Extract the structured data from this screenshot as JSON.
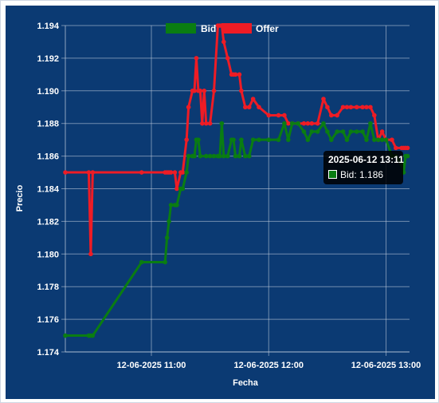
{
  "chart_data": {
    "type": "line",
    "xlabel": "Fecha",
    "ylabel": "Precio",
    "ylim": [
      1.174,
      1.194
    ],
    "yticks": [
      "1.174",
      "1.176",
      "1.178",
      "1.180",
      "1.182",
      "1.184",
      "1.186",
      "1.188",
      "1.190",
      "1.192",
      "1.194"
    ],
    "xlim": [
      "2025-06-12 10:16",
      "2025-06-12 13:12"
    ],
    "xticks": [
      {
        "label": "12-06-2025 11:00",
        "time": "2025-06-12 11:00"
      },
      {
        "label": "12-06-2025 12:00",
        "time": "2025-06-12 12:00"
      },
      {
        "label": "12-06-2025 13:00",
        "time": "2025-06-12 13:00"
      }
    ],
    "grid": true,
    "legend_position": "top-center",
    "series": [
      {
        "name": "Bid",
        "color": "#0a7d12",
        "points": [
          [
            "10:16",
            1.175
          ],
          [
            "10:28",
            1.175
          ],
          [
            "10:29",
            1.175
          ],
          [
            "10:30",
            1.175
          ],
          [
            "10:55",
            1.1795
          ],
          [
            "11:07",
            1.1795
          ],
          [
            "11:08",
            1.181
          ],
          [
            "11:09",
            1.182
          ],
          [
            "11:10",
            1.183
          ],
          [
            "11:12",
            1.183
          ],
          [
            "11:13",
            1.183
          ],
          [
            "11:15",
            1.184
          ],
          [
            "11:16",
            1.184
          ],
          [
            "11:18",
            1.185
          ],
          [
            "11:19",
            1.186
          ],
          [
            "11:21",
            1.186
          ],
          [
            "11:22",
            1.186
          ],
          [
            "11:23",
            1.187
          ],
          [
            "11:24",
            1.187
          ],
          [
            "11:25",
            1.186
          ],
          [
            "11:28",
            1.186
          ],
          [
            "11:30",
            1.186
          ],
          [
            "11:32",
            1.186
          ],
          [
            "11:34",
            1.186
          ],
          [
            "11:35",
            1.186
          ],
          [
            "11:36",
            1.188
          ],
          [
            "11:37",
            1.186
          ],
          [
            "11:39",
            1.186
          ],
          [
            "11:41",
            1.187
          ],
          [
            "11:42",
            1.187
          ],
          [
            "11:43",
            1.186
          ],
          [
            "11:45",
            1.186
          ],
          [
            "11:46",
            1.187
          ],
          [
            "11:48",
            1.186
          ],
          [
            "11:50",
            1.186
          ],
          [
            "11:52",
            1.187
          ],
          [
            "11:55",
            1.187
          ],
          [
            "12:00",
            1.187
          ],
          [
            "12:05",
            1.187
          ],
          [
            "12:08",
            1.188
          ],
          [
            "12:10",
            1.187
          ],
          [
            "12:12",
            1.188
          ],
          [
            "12:15",
            1.188
          ],
          [
            "12:18",
            1.1875
          ],
          [
            "12:20",
            1.187
          ],
          [
            "12:22",
            1.1875
          ],
          [
            "12:25",
            1.1875
          ],
          [
            "12:28",
            1.188
          ],
          [
            "12:30",
            1.1875
          ],
          [
            "12:32",
            1.187
          ],
          [
            "12:35",
            1.1875
          ],
          [
            "12:38",
            1.1875
          ],
          [
            "12:40",
            1.187
          ],
          [
            "12:42",
            1.1875
          ],
          [
            "12:45",
            1.1875
          ],
          [
            "12:48",
            1.1875
          ],
          [
            "12:50",
            1.187
          ],
          [
            "12:52",
            1.188
          ],
          [
            "12:54",
            1.187
          ],
          [
            "12:56",
            1.187
          ],
          [
            "12:58",
            1.187
          ],
          [
            "13:00",
            1.187
          ],
          [
            "13:03",
            1.186
          ],
          [
            "13:05",
            1.186
          ],
          [
            "13:08",
            1.1855
          ],
          [
            "13:09",
            1.185
          ],
          [
            "13:10",
            1.186
          ],
          [
            "13:11",
            1.186
          ]
        ]
      },
      {
        "name": "Offer",
        "color": "#ee1c25",
        "points": [
          [
            "10:16",
            1.185
          ],
          [
            "10:28",
            1.185
          ],
          [
            "10:29",
            1.18
          ],
          [
            "10:30",
            1.185
          ],
          [
            "10:55",
            1.185
          ],
          [
            "11:07",
            1.185
          ],
          [
            "11:08",
            1.185
          ],
          [
            "11:09",
            1.185
          ],
          [
            "11:10",
            1.185
          ],
          [
            "11:12",
            1.185
          ],
          [
            "11:13",
            1.184
          ],
          [
            "11:15",
            1.185
          ],
          [
            "11:16",
            1.185
          ],
          [
            "11:18",
            1.187
          ],
          [
            "11:19",
            1.189
          ],
          [
            "11:21",
            1.19
          ],
          [
            "11:22",
            1.19
          ],
          [
            "11:23",
            1.192
          ],
          [
            "11:24",
            1.19
          ],
          [
            "11:25",
            1.19
          ],
          [
            "11:26",
            1.188
          ],
          [
            "11:27",
            1.19
          ],
          [
            "11:28",
            1.188
          ],
          [
            "11:30",
            1.188
          ],
          [
            "11:32",
            1.19
          ],
          [
            "11:34",
            1.194
          ],
          [
            "11:35",
            1.194
          ],
          [
            "11:36",
            1.194
          ],
          [
            "11:37",
            1.193
          ],
          [
            "11:39",
            1.192
          ],
          [
            "11:41",
            1.191
          ],
          [
            "11:42",
            1.191
          ],
          [
            "11:43",
            1.191
          ],
          [
            "11:45",
            1.191
          ],
          [
            "11:46",
            1.19
          ],
          [
            "11:48",
            1.189
          ],
          [
            "11:50",
            1.189
          ],
          [
            "11:52",
            1.1895
          ],
          [
            "11:55",
            1.189
          ],
          [
            "12:00",
            1.1885
          ],
          [
            "12:05",
            1.1885
          ],
          [
            "12:08",
            1.1885
          ],
          [
            "12:10",
            1.188
          ],
          [
            "12:12",
            1.188
          ],
          [
            "12:15",
            1.188
          ],
          [
            "12:18",
            1.188
          ],
          [
            "12:20",
            1.188
          ],
          [
            "12:22",
            1.188
          ],
          [
            "12:25",
            1.188
          ],
          [
            "12:28",
            1.1895
          ],
          [
            "12:30",
            1.189
          ],
          [
            "12:32",
            1.1885
          ],
          [
            "12:35",
            1.1885
          ],
          [
            "12:38",
            1.189
          ],
          [
            "12:40",
            1.189
          ],
          [
            "12:42",
            1.189
          ],
          [
            "12:45",
            1.189
          ],
          [
            "12:48",
            1.189
          ],
          [
            "12:50",
            1.189
          ],
          [
            "12:52",
            1.189
          ],
          [
            "12:54",
            1.1885
          ],
          [
            "12:56",
            1.187
          ],
          [
            "12:58",
            1.1875
          ],
          [
            "13:00",
            1.187
          ],
          [
            "13:03",
            1.187
          ],
          [
            "13:05",
            1.1865
          ],
          [
            "13:08",
            1.1865
          ],
          [
            "13:09",
            1.1865
          ],
          [
            "13:10",
            1.1865
          ],
          [
            "13:11",
            1.1865
          ]
        ]
      }
    ],
    "tooltip": {
      "title": "2025-06-12 13:11",
      "series": "Bid",
      "text": "Bid: 1.186"
    }
  }
}
